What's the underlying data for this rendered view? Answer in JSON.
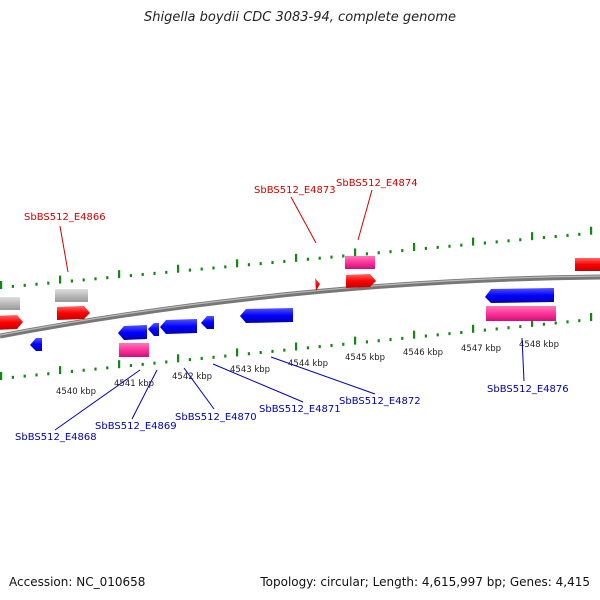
{
  "title": "Shigella boydii CDC 3083-94, complete genome",
  "footer": {
    "accession": "Accession: NC_010658",
    "summary": "Topology: circular; Length: 4,615,997 bp; Genes: 4,415"
  },
  "scale_labels": [
    {
      "text": "4540 kbp"
    },
    {
      "text": "4541 kbp"
    },
    {
      "text": "4542 kbp"
    },
    {
      "text": "4543 kbp"
    },
    {
      "text": "4544 kbp"
    },
    {
      "text": "4545 kbp"
    },
    {
      "text": "4546 kbp"
    },
    {
      "text": "4547 kbp"
    },
    {
      "text": "4548 kbp"
    }
  ],
  "gene_labels": {
    "red": [
      "SbBS512_E4866",
      "SbBS512_E4873",
      "SbBS512_E4874"
    ],
    "blue": [
      "SbBS512_E4868",
      "SbBS512_E4869",
      "SbBS512_E4870",
      "SbBS512_E4871",
      "SbBS512_E4872",
      "SbBS512_E4876"
    ]
  },
  "colors": {
    "forward_cds": "#ff0000",
    "reverse_cds": "#0000ff",
    "gene_pink": "#ff3399",
    "other": "#bbbbbb",
    "backbone": "#888888",
    "ticks": "#118811",
    "forward_label": "#d40000",
    "reverse_label": "#0000b0"
  }
}
